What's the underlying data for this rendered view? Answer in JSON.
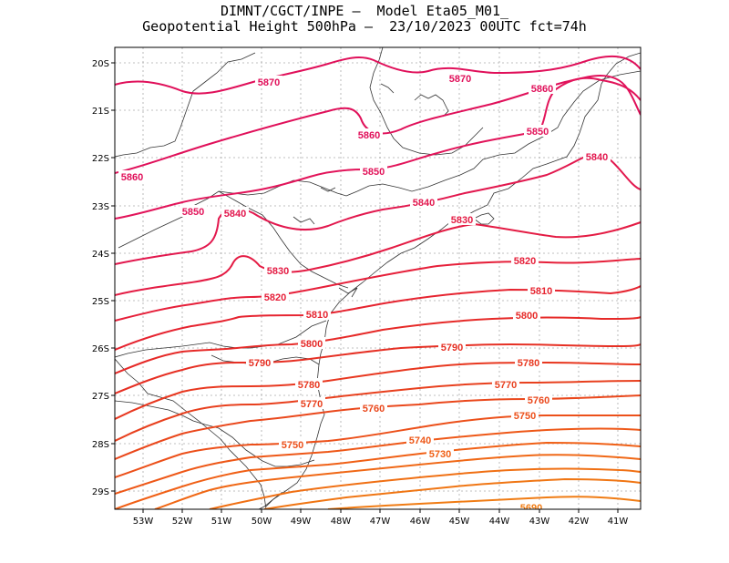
{
  "header": {
    "line1": "DIMNT/CGCT/INPE —  Model Eta05_M01_",
    "line2": "Geopotential Height 500hPa —  23/10/2023 00UTC fct=74h"
  },
  "axes": {
    "x_labels": [
      "53W",
      "52W",
      "51W",
      "50W",
      "49W",
      "48W",
      "47W",
      "46W",
      "45W",
      "44W",
      "43W",
      "42W",
      "41W"
    ],
    "y_labels": [
      "20S",
      "21S",
      "22S",
      "23S",
      "24S",
      "25S",
      "26S",
      "27S",
      "28S",
      "29S"
    ]
  },
  "contours": [
    {
      "value": "5870",
      "color": "#e0105a",
      "labels": [
        [
          295,
          90
        ],
        [
          505,
          86
        ]
      ]
    },
    {
      "value": "5860",
      "color": "#e0105a",
      "labels": [
        [
          145,
          194
        ],
        [
          405,
          148
        ],
        [
          595,
          97
        ]
      ]
    },
    {
      "value": "5850",
      "color": "#e2145a",
      "labels": [
        [
          212,
          232
        ],
        [
          410,
          188
        ],
        [
          590,
          144
        ]
      ]
    },
    {
      "value": "5840",
      "color": "#e2184e",
      "labels": [
        [
          258,
          234
        ],
        [
          465,
          222
        ],
        [
          655,
          172
        ]
      ]
    },
    {
      "value": "5830",
      "color": "#e41c44",
      "labels": [
        [
          305,
          297
        ],
        [
          507,
          241
        ]
      ]
    },
    {
      "value": "5820",
      "color": "#e6203a",
      "labels": [
        [
          302,
          326
        ],
        [
          576,
          286
        ]
      ]
    },
    {
      "value": "5810",
      "color": "#e62430",
      "labels": [
        [
          348,
          345
        ],
        [
          594,
          319
        ]
      ]
    },
    {
      "value": "5800",
      "color": "#e62a28",
      "labels": [
        [
          342,
          377
        ],
        [
          578,
          346
        ]
      ]
    },
    {
      "value": "5790",
      "color": "#e63024",
      "labels": [
        [
          285,
          398
        ],
        [
          496,
          381
        ]
      ]
    },
    {
      "value": "5780",
      "color": "#e83820",
      "labels": [
        [
          339,
          422
        ],
        [
          580,
          398
        ]
      ]
    },
    {
      "value": "5770",
      "color": "#e8401e",
      "labels": [
        [
          342,
          443
        ],
        [
          555,
          422
        ]
      ]
    },
    {
      "value": "5760",
      "color": "#ea481c",
      "labels": [
        [
          410,
          448
        ],
        [
          591,
          439
        ]
      ]
    },
    {
      "value": "5750",
      "color": "#ec501a",
      "labels": [
        [
          321,
          488
        ],
        [
          576,
          456
        ]
      ]
    },
    {
      "value": "5740",
      "color": "#ee5818",
      "labels": [
        [
          461,
          483
        ]
      ]
    },
    {
      "value": "5730",
      "color": "#f06016",
      "labels": [
        [
          483,
          498
        ]
      ]
    },
    {
      "value": "5690",
      "color": "#f07c14",
      "labels": [
        [
          583,
          557
        ]
      ]
    }
  ]
}
